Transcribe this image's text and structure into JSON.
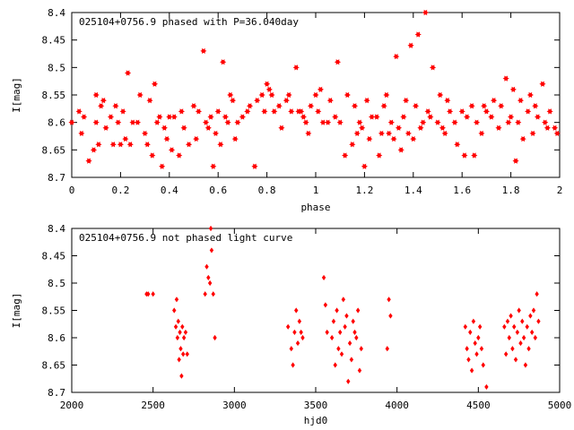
{
  "chart_data": [
    {
      "type": "scatter",
      "title": "025104+0756.9 phased with P=36.040day",
      "xlabel": "phase",
      "ylabel": "I[mag]",
      "xlim": [
        0,
        2
      ],
      "ylim": [
        8.7,
        8.4
      ],
      "y_inverted": true,
      "xticks": [
        "0",
        "0.2",
        "0.4",
        "0.6",
        "0.8",
        "1",
        "1.2",
        "1.4",
        "1.6",
        "1.8",
        "2"
      ],
      "yticks": [
        "8.4",
        "8.45",
        "8.5",
        "8.55",
        "8.6",
        "8.65",
        "8.7"
      ],
      "grid": false,
      "marker": "star",
      "color": "#ff0000",
      "series": [
        {
          "x": [
            0.0,
            0.03,
            0.04,
            0.05,
            0.07,
            0.09,
            0.1,
            0.1,
            0.11,
            0.12,
            0.13,
            0.14,
            0.16,
            0.17,
            0.18,
            0.19,
            0.2,
            0.21,
            0.22,
            0.23,
            0.24,
            0.25,
            0.27,
            0.28,
            0.3,
            0.31,
            0.32,
            0.33,
            0.34,
            0.35,
            0.36,
            0.37,
            0.38,
            0.39,
            0.4,
            0.41,
            0.42,
            0.44,
            0.45,
            0.46,
            0.48,
            0.5,
            0.51,
            0.52,
            0.54,
            0.55,
            0.56,
            0.57,
            0.58,
            0.59,
            0.6,
            0.61,
            0.62,
            0.63,
            0.64,
            0.65,
            0.66,
            0.67,
            0.68,
            0.7,
            0.72,
            0.73,
            0.75,
            0.76,
            0.78,
            0.79,
            0.8,
            0.81,
            0.82,
            0.83,
            0.85,
            0.86,
            0.88,
            0.89,
            0.9,
            0.92,
            0.93,
            0.94,
            0.95,
            0.96,
            0.97,
            0.98,
            1.0,
            1.01,
            1.02,
            1.03,
            1.05,
            1.06,
            1.08,
            1.09,
            1.1,
            1.12,
            1.13,
            1.15,
            1.16,
            1.17,
            1.18,
            1.19,
            1.2,
            1.21,
            1.22,
            1.23,
            1.25,
            1.26,
            1.27,
            1.28,
            1.29,
            1.3,
            1.31,
            1.32,
            1.33,
            1.34,
            1.35,
            1.36,
            1.37,
            1.38,
            1.39,
            1.4,
            1.41,
            1.42,
            1.43,
            1.44,
            1.45,
            1.46,
            1.47,
            1.48,
            1.5,
            1.51,
            1.52,
            1.53,
            1.54,
            1.55,
            1.57,
            1.58,
            1.6,
            1.61,
            1.62,
            1.64,
            1.65,
            1.66,
            1.68,
            1.69,
            1.7,
            1.72,
            1.73,
            1.75,
            1.76,
            1.78,
            1.79,
            1.8,
            1.81,
            1.82,
            1.83,
            1.84,
            1.85,
            1.87,
            1.88,
            1.89,
            1.9,
            1.91,
            1.93,
            1.94,
            1.95,
            1.96,
            1.98,
            1.99
          ],
          "y": [
            8.6,
            8.58,
            8.62,
            8.59,
            8.67,
            8.65,
            8.55,
            8.6,
            8.64,
            8.57,
            8.56,
            8.61,
            8.59,
            8.64,
            8.57,
            8.6,
            8.64,
            8.58,
            8.63,
            8.51,
            8.64,
            8.6,
            8.6,
            8.55,
            8.62,
            8.64,
            8.56,
            8.66,
            8.53,
            8.6,
            8.59,
            8.68,
            8.61,
            8.63,
            8.59,
            8.65,
            8.59,
            8.66,
            8.58,
            8.61,
            8.64,
            8.57,
            8.63,
            8.58,
            8.47,
            8.6,
            8.61,
            8.59,
            8.68,
            8.62,
            8.58,
            8.64,
            8.49,
            8.59,
            8.6,
            8.55,
            8.56,
            8.63,
            8.6,
            8.59,
            8.58,
            8.57,
            8.68,
            8.56,
            8.55,
            8.58,
            8.53,
            8.54,
            8.55,
            8.58,
            8.57,
            8.61,
            8.56,
            8.55,
            8.58,
            8.5,
            8.58,
            8.58,
            8.59,
            8.6,
            8.62,
            8.57,
            8.55,
            8.58,
            8.54,
            8.6,
            8.6,
            8.56,
            8.59,
            8.49,
            8.6,
            8.66,
            8.55,
            8.64,
            8.57,
            8.62,
            8.6,
            8.61,
            8.68,
            8.56,
            8.63,
            8.59,
            8.59,
            8.66,
            8.62,
            8.57,
            8.55,
            8.62,
            8.6,
            8.63,
            8.48,
            8.61,
            8.65,
            8.59,
            8.56,
            8.62,
            8.46,
            8.63,
            8.57,
            8.44,
            8.61,
            8.6,
            8.4,
            8.58,
            8.59,
            8.5,
            8.6,
            8.55,
            8.61,
            8.62,
            8.56,
            8.58,
            8.6,
            8.64,
            8.58,
            8.66,
            8.59,
            8.57,
            8.66,
            8.6,
            8.62,
            8.57,
            8.58,
            8.59,
            8.56,
            8.61,
            8.57,
            8.52,
            8.6,
            8.59,
            8.54,
            8.67,
            8.6,
            8.56,
            8.63,
            8.58,
            8.55,
            8.62,
            8.57,
            8.59,
            8.53,
            8.6,
            8.61,
            8.58,
            8.61,
            8.62
          ]
        }
      ]
    },
    {
      "type": "scatter",
      "title": "025104+0756.9 not phased light curve",
      "xlabel": "hjd0",
      "ylabel": "I[mag]",
      "xlim": [
        2000,
        5000
      ],
      "ylim": [
        8.7,
        8.4
      ],
      "y_inverted": true,
      "xticks": [
        "2000",
        "2500",
        "3000",
        "3500",
        "4000",
        "4500",
        "5000"
      ],
      "yticks": [
        "8.4",
        "8.45",
        "8.5",
        "8.55",
        "8.6",
        "8.65",
        "8.7"
      ],
      "grid": false,
      "marker": "diamond",
      "color": "#ff0000",
      "series": [
        {
          "x": [
            2460,
            2470,
            2500,
            2630,
            2640,
            2645,
            2650,
            2655,
            2660,
            2665,
            2670,
            2675,
            2680,
            2685,
            2690,
            2700,
            2710,
            2820,
            2830,
            2840,
            2850,
            2855,
            2860,
            2870,
            2880,
            3330,
            3350,
            3360,
            3370,
            3380,
            3390,
            3400,
            3410,
            3420,
            3550,
            3560,
            3570,
            3600,
            3610,
            3620,
            3630,
            3640,
            3650,
            3660,
            3670,
            3680,
            3690,
            3700,
            3710,
            3720,
            3730,
            3740,
            3750,
            3760,
            3770,
            3780,
            3940,
            3950,
            3960,
            4420,
            4430,
            4440,
            4450,
            4460,
            4470,
            4480,
            4490,
            4500,
            4510,
            4520,
            4530,
            4550,
            4660,
            4670,
            4680,
            4690,
            4700,
            4710,
            4720,
            4730,
            4740,
            4750,
            4760,
            4770,
            4780,
            4790,
            4800,
            4810,
            4820,
            4830,
            4840,
            4850,
            4860,
            4870
          ],
          "y": [
            8.52,
            8.52,
            8.52,
            8.55,
            8.58,
            8.53,
            8.6,
            8.57,
            8.64,
            8.59,
            8.62,
            8.67,
            8.58,
            8.63,
            8.6,
            8.59,
            8.63,
            8.52,
            8.47,
            8.49,
            8.5,
            8.4,
            8.44,
            8.52,
            8.6,
            8.58,
            8.62,
            8.65,
            8.59,
            8.55,
            8.61,
            8.57,
            8.59,
            8.6,
            8.49,
            8.54,
            8.59,
            8.6,
            8.57,
            8.65,
            8.55,
            8.62,
            8.59,
            8.63,
            8.53,
            8.58,
            8.56,
            8.68,
            8.61,
            8.64,
            8.57,
            8.59,
            8.6,
            8.55,
            8.66,
            8.62,
            8.62,
            8.53,
            8.56,
            8.58,
            8.62,
            8.64,
            8.59,
            8.66,
            8.57,
            8.61,
            8.63,
            8.6,
            8.58,
            8.62,
            8.65,
            8.69,
            8.58,
            8.63,
            8.57,
            8.6,
            8.56,
            8.62,
            8.58,
            8.64,
            8.59,
            8.55,
            8.61,
            8.57,
            8.6,
            8.65,
            8.58,
            8.62,
            8.56,
            8.59,
            8.55,
            8.6,
            8.52,
            8.57
          ]
        }
      ]
    }
  ]
}
